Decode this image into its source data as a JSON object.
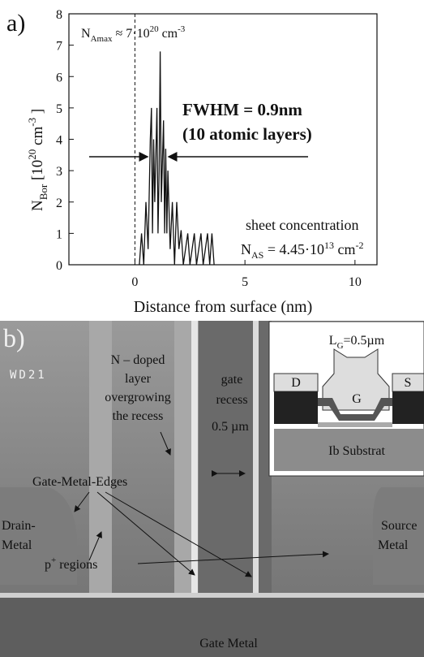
{
  "chart_data": {
    "type": "line",
    "panel_label": "a)",
    "peak_note": {
      "base": "N",
      "sub": "Amax",
      "mid": " ≈ 7·10",
      "sup": "20",
      "unit": " cm",
      "unit_sup": "-3"
    },
    "ylabel": {
      "base": "N",
      "sub": "Bor",
      "mid": "  [10",
      "sup": "20",
      "unit": " cm",
      "unit_sup": "-3",
      "close": " ]"
    },
    "fwhm": "FWHM = 0.9nm",
    "fwhm_note": "(10 atomic layers)",
    "sheet_label": "sheet concentration",
    "sheet_value": {
      "base": "N",
      "sub": "AS",
      "mid": " = 4.45·10",
      "sup": "13",
      "unit": " cm",
      "unit_sup": "-2"
    },
    "xlabel": "Distance from surface (nm)",
    "x": [
      0.2,
      0.3,
      0.4,
      0.5,
      0.6,
      0.7,
      0.75,
      0.8,
      0.85,
      0.9,
      1.0,
      1.05,
      1.1,
      1.15,
      1.2,
      1.3,
      1.35,
      1.4,
      1.45,
      1.5,
      1.6,
      1.7,
      1.8,
      1.9,
      2.0,
      2.1,
      2.2,
      2.4,
      2.5,
      2.7,
      2.8,
      3.0,
      3.1,
      3.3,
      3.4,
      3.5,
      3.6
    ],
    "values": [
      0,
      1,
      0,
      2,
      0.5,
      4,
      5,
      1,
      4,
      2,
      5,
      1,
      3,
      6.8,
      2,
      4.6,
      1,
      3.7,
      1,
      3,
      0.5,
      2,
      0,
      2,
      0.5,
      1.1,
      0,
      1,
      0,
      1,
      0,
      1,
      0,
      1,
      0,
      1,
      0
    ],
    "color": "#111111",
    "xlim": [
      -3,
      11
    ],
    "ylim": [
      0,
      8
    ],
    "xticks": [
      0,
      5,
      10
    ],
    "yticks": [
      0,
      1,
      2,
      3,
      4,
      5,
      6,
      7,
      8
    ]
  },
  "image_b": {
    "panel_label": "b)",
    "wd": "WD21",
    "doped": [
      "N – doped",
      "layer",
      "overgrowing",
      "the recess"
    ],
    "gate_recess": [
      "gate",
      "recess",
      "0.5 µm"
    ],
    "edges": "Gate-Metal-Edges",
    "drain": [
      "Drain-",
      "Metal"
    ],
    "source": [
      "Source",
      "Metal"
    ],
    "p_regions": {
      "base": "p",
      "sup": "+",
      "rest": " regions"
    },
    "gate_metal": "Gate Metal",
    "inset": {
      "lg": {
        "base": "L",
        "sub": "G",
        "rest": "=0.5µm"
      },
      "d": "D",
      "s": "S",
      "g": "G",
      "substrate": "Ib Substrat"
    }
  }
}
